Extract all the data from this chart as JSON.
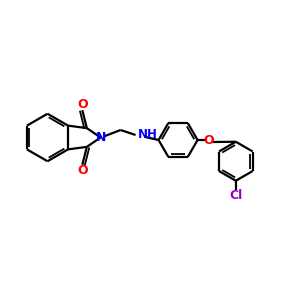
{
  "bg_color": "#FFFFFF",
  "bond_color": "#000000",
  "n_color": "#0000FF",
  "o_color": "#FF0000",
  "cl_color": "#9900CC",
  "figsize": [
    3.0,
    3.0
  ],
  "dpi": 100,
  "xlim": [
    0,
    12
  ],
  "ylim": [
    0,
    10
  ]
}
